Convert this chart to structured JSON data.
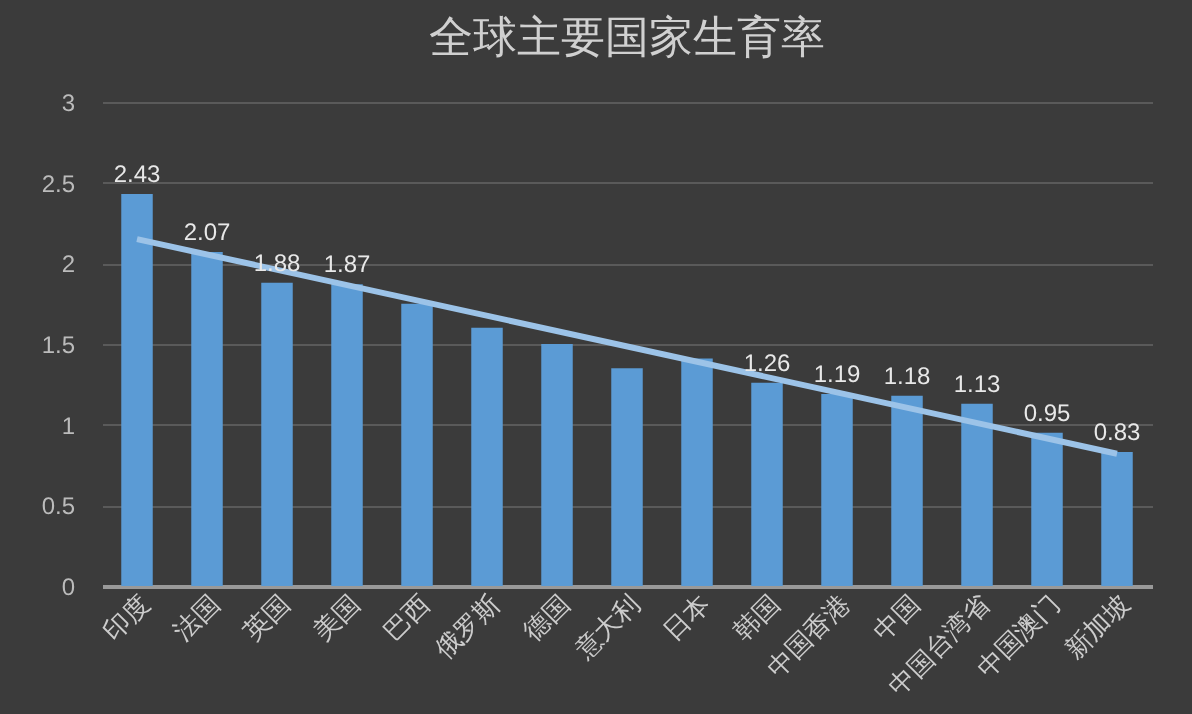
{
  "chart_data": {
    "type": "bar",
    "title": "全球主要国家生育率",
    "categories": [
      "印度",
      "法国",
      "英国",
      "美国",
      "巴西",
      "俄罗斯",
      "德国",
      "意大利",
      "日本",
      "韩国",
      "中国香港",
      "中国",
      "中国台湾省",
      "中国澳门",
      "新加坡"
    ],
    "series": [
      {
        "color": "#5b9bd5",
        "values": [
          2.43,
          2.07,
          1.88,
          1.87,
          1.75,
          1.6,
          1.5,
          1.35,
          1.41,
          1.26,
          1.19,
          1.18,
          1.13,
          0.95,
          0.83
        ],
        "value_labels": [
          "2.43",
          "2.07",
          "1.88",
          "1.87",
          null,
          null,
          null,
          null,
          null,
          "1.26",
          "1.19",
          "1.18",
          "1.13",
          "0.95",
          "0.83"
        ]
      },
      {
        "type": "line",
        "color": "#9cc3e8",
        "x": [
          "印度",
          "新加坡"
        ],
        "values": [
          2.15,
          0.82
        ]
      }
    ],
    "ylim": [
      0,
      3
    ],
    "yticks": [
      0,
      0.5,
      1,
      1.5,
      2,
      2.5,
      3
    ],
    "grid": "y"
  }
}
